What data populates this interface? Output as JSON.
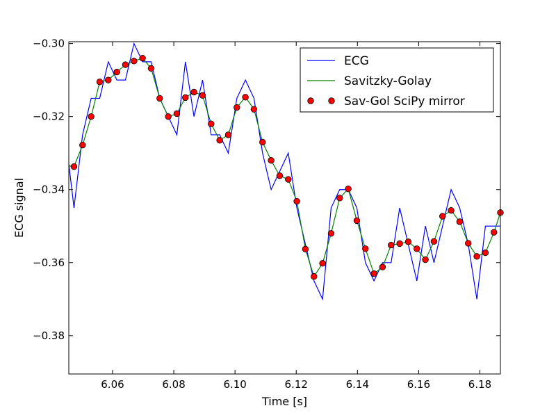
{
  "chart_data": {
    "type": "line",
    "title": "",
    "xlabel": "Time [s]",
    "ylabel": "ECG signal",
    "xlim": [
      6.0457,
      6.1867
    ],
    "ylim": [
      -0.3905,
      -0.2995
    ],
    "xticks": [
      6.06,
      6.08,
      6.1,
      6.12,
      6.14,
      6.16,
      6.18
    ],
    "xtick_labels": [
      "6.06",
      "6.08",
      "6.10",
      "6.12",
      "6.14",
      "6.16",
      "6.18"
    ],
    "yticks": [
      -0.3,
      -0.32,
      -0.34,
      -0.36,
      -0.38
    ],
    "ytick_labels": [
      "−0.30",
      "−0.32",
      "−0.34",
      "−0.36",
      "−0.38"
    ],
    "grid": false,
    "legend_position": "top-right",
    "series": [
      {
        "name": "ECG",
        "kind": "line",
        "color": "#0000ff",
        "x": [
          6.0457,
          6.0474,
          6.0502,
          6.053,
          6.0558,
          6.0586,
          6.0614,
          6.0642,
          6.067,
          6.0698,
          6.0726,
          6.0754,
          6.0782,
          6.081,
          6.0838,
          6.0866,
          6.0894,
          6.0922,
          6.095,
          6.0978,
          6.1006,
          6.1034,
          6.1062,
          6.109,
          6.1118,
          6.1146,
          6.1174,
          6.1202,
          6.123,
          6.1258,
          6.1286,
          6.1314,
          6.1342,
          6.137,
          6.1398,
          6.1426,
          6.1454,
          6.1482,
          6.151,
          6.1538,
          6.1566,
          6.1594,
          6.1622,
          6.165,
          6.1678,
          6.1706,
          6.1734,
          6.1762,
          6.179,
          6.1818,
          6.1846,
          6.1867
        ],
        "y": [
          -0.333,
          -0.345,
          -0.325,
          -0.315,
          -0.315,
          -0.305,
          -0.31,
          -0.31,
          -0.3,
          -0.305,
          -0.305,
          -0.315,
          -0.32,
          -0.325,
          -0.305,
          -0.32,
          -0.31,
          -0.325,
          -0.325,
          -0.33,
          -0.315,
          -0.31,
          -0.315,
          -0.33,
          -0.34,
          -0.335,
          -0.33,
          -0.345,
          -0.355,
          -0.365,
          -0.37,
          -0.345,
          -0.34,
          -0.34,
          -0.345,
          -0.36,
          -0.365,
          -0.36,
          -0.36,
          -0.345,
          -0.355,
          -0.365,
          -0.35,
          -0.36,
          -0.35,
          -0.34,
          -0.345,
          -0.355,
          -0.37,
          -0.35,
          -0.35,
          -0.35
        ]
      },
      {
        "name": "Savitzky-Golay",
        "kind": "line",
        "color": "#008000",
        "x": [
          6.0457,
          6.0474,
          6.0502,
          6.053,
          6.0558,
          6.0586,
          6.0614,
          6.0642,
          6.067,
          6.0698,
          6.0726,
          6.0754,
          6.0782,
          6.081,
          6.0838,
          6.0866,
          6.0894,
          6.0922,
          6.095,
          6.0978,
          6.1006,
          6.1034,
          6.1062,
          6.109,
          6.1118,
          6.1146,
          6.1174,
          6.1202,
          6.123,
          6.1258,
          6.1286,
          6.1314,
          6.1342,
          6.137,
          6.1398,
          6.1426,
          6.1454,
          6.1482,
          6.151,
          6.1538,
          6.1566,
          6.1594,
          6.1622,
          6.165,
          6.1678,
          6.1706,
          6.1734,
          6.1762,
          6.179,
          6.1818,
          6.1846,
          6.1867
        ],
        "y": [
          -0.3335,
          -0.3337,
          -0.3278,
          -0.32,
          -0.3105,
          -0.31,
          -0.3078,
          -0.3058,
          -0.3048,
          -0.304,
          -0.3068,
          -0.315,
          -0.32,
          -0.3192,
          -0.3148,
          -0.3133,
          -0.3142,
          -0.322,
          -0.3265,
          -0.325,
          -0.3175,
          -0.3147,
          -0.318,
          -0.327,
          -0.332,
          -0.3362,
          -0.3372,
          -0.3432,
          -0.3563,
          -0.3638,
          -0.3602,
          -0.352,
          -0.3423,
          -0.3398,
          -0.3485,
          -0.3562,
          -0.363,
          -0.3612,
          -0.3552,
          -0.3548,
          -0.3543,
          -0.3562,
          -0.3592,
          -0.3542,
          -0.3473,
          -0.3457,
          -0.3488,
          -0.3547,
          -0.3583,
          -0.3573,
          -0.3517,
          -0.3463
        ]
      },
      {
        "name": "Sav-Gol SciPy mirror",
        "kind": "scatter",
        "color": "#ff0000",
        "x": [
          6.0474,
          6.0502,
          6.053,
          6.0558,
          6.0586,
          6.0614,
          6.0642,
          6.067,
          6.0698,
          6.0726,
          6.0754,
          6.0782,
          6.081,
          6.0838,
          6.0866,
          6.0894,
          6.0922,
          6.095,
          6.0978,
          6.1006,
          6.1034,
          6.1062,
          6.109,
          6.1118,
          6.1146,
          6.1174,
          6.1202,
          6.123,
          6.1258,
          6.1286,
          6.1314,
          6.1342,
          6.137,
          6.1398,
          6.1426,
          6.1454,
          6.1482,
          6.151,
          6.1538,
          6.1566,
          6.1594,
          6.1622,
          6.165,
          6.1678,
          6.1706,
          6.1734,
          6.1762,
          6.179,
          6.1818,
          6.1846,
          6.1867
        ],
        "y": [
          -0.3337,
          -0.3278,
          -0.32,
          -0.3105,
          -0.31,
          -0.3078,
          -0.3058,
          -0.3048,
          -0.304,
          -0.3068,
          -0.315,
          -0.32,
          -0.3192,
          -0.3148,
          -0.3133,
          -0.3142,
          -0.322,
          -0.3265,
          -0.325,
          -0.3175,
          -0.3147,
          -0.318,
          -0.327,
          -0.332,
          -0.3362,
          -0.3372,
          -0.3432,
          -0.3563,
          -0.3638,
          -0.3602,
          -0.352,
          -0.3423,
          -0.3398,
          -0.3485,
          -0.3562,
          -0.363,
          -0.3612,
          -0.3552,
          -0.3548,
          -0.3543,
          -0.3562,
          -0.3592,
          -0.3542,
          -0.3473,
          -0.3457,
          -0.3488,
          -0.3547,
          -0.3583,
          -0.3573,
          -0.3517,
          -0.3463
        ]
      }
    ]
  }
}
